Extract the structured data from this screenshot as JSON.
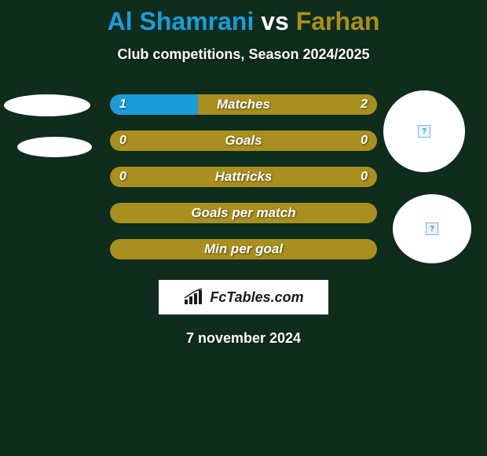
{
  "background_color": "#0f2c1d",
  "title": {
    "player1": "Al Shamrani",
    "vs": "vs",
    "player2": "Farhan",
    "player1_color": "#1b9dd9",
    "vs_color": "#ffffff",
    "player2_color": "#a88f1f"
  },
  "subtitle": "Club competitions, Season 2024/2025",
  "bars": {
    "height": 26,
    "radius": 13,
    "gap": 20,
    "left_color": "#1b9dd9",
    "right_color": "#a88f1f",
    "single_color": "#a88f1f",
    "label_color": "#ffffff",
    "items": [
      {
        "label": "Matches",
        "left": "1",
        "right": "2",
        "left_pct": 33,
        "right_pct": 67
      },
      {
        "label": "Goals",
        "left": "0",
        "right": "0",
        "left_pct": 0,
        "right_pct": 100
      },
      {
        "label": "Hattricks",
        "left": "0",
        "right": "0",
        "left_pct": 0,
        "right_pct": 100
      },
      {
        "label": "Goals per match",
        "left": "",
        "right": "",
        "left_pct": 0,
        "right_pct": 100
      },
      {
        "label": "Min per goal",
        "left": "",
        "right": "",
        "left_pct": 0,
        "right_pct": 100
      }
    ]
  },
  "avatars": {
    "bg": "#ffffff",
    "placeholder_border": "#76b3d8",
    "placeholder_bg": "#eaf4fb"
  },
  "logo": {
    "text": "FcTables.com",
    "bg": "#ffffff",
    "text_color": "#1a1a1a"
  },
  "date": "7 november 2024"
}
